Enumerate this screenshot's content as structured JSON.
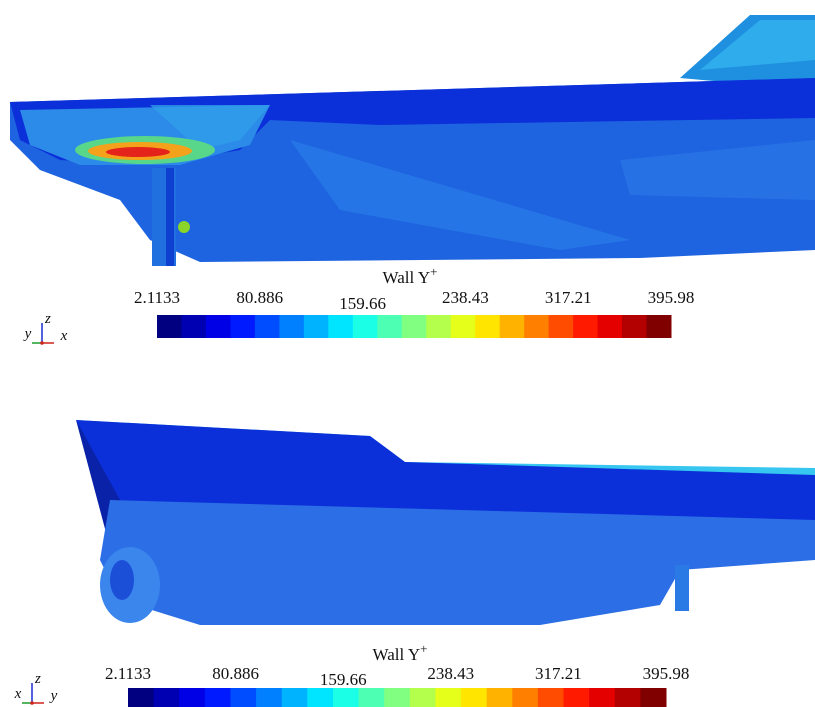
{
  "panels": [
    {
      "colorbar": {
        "title": "Wall Y",
        "title_superscript": "+",
        "ticks": [
          "2.1133",
          "80.886",
          "159.66",
          "238.43",
          "317.21",
          "395.98"
        ]
      },
      "triad": {
        "left": "y",
        "up": "z",
        "right": "x"
      }
    },
    {
      "colorbar": {
        "title": "Wall Y",
        "title_superscript": "+",
        "ticks": [
          "2.1133",
          "80.886",
          "159.66",
          "238.43",
          "317.21",
          "395.98"
        ]
      },
      "triad": {
        "left": "x",
        "up": "z",
        "right": "y"
      }
    }
  ]
}
